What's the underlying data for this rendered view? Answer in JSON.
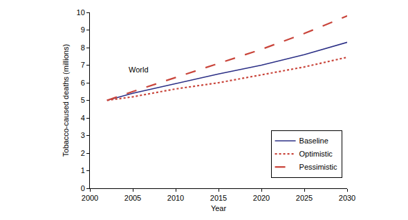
{
  "chart_data": {
    "type": "line",
    "x_label": "Year",
    "y_label": "Tobacco-caused deaths (millions)",
    "annotations": [
      {
        "text": "World",
        "x": 2005.7,
        "y": 6.75
      }
    ],
    "x": [
      2002,
      2005,
      2010,
      2015,
      2020,
      2025,
      2030
    ],
    "series": [
      {
        "name": "Baseline",
        "color": "#2b2f86",
        "line_style": "solid",
        "values": [
          5.0,
          5.4,
          5.95,
          6.5,
          7.0,
          7.6,
          8.3
        ]
      },
      {
        "name": "Optimistic",
        "color": "#c9453b",
        "line_style": "dot",
        "values": [
          5.0,
          5.2,
          5.65,
          6.0,
          6.45,
          6.9,
          7.45
        ]
      },
      {
        "name": "Pessimistic",
        "color": "#c9453b",
        "line_style": "dash",
        "values": [
          5.0,
          5.5,
          6.3,
          7.1,
          7.9,
          8.8,
          9.8
        ]
      }
    ],
    "xlim": [
      2000,
      2030
    ],
    "xticks": [
      2000,
      2005,
      2010,
      2015,
      2020,
      2025,
      2030
    ],
    "ylim": [
      0,
      10
    ],
    "yticks": [
      0,
      1,
      2,
      3,
      4,
      5,
      6,
      7,
      8,
      9,
      10
    ],
    "grid": false,
    "legend": "bottom right"
  }
}
